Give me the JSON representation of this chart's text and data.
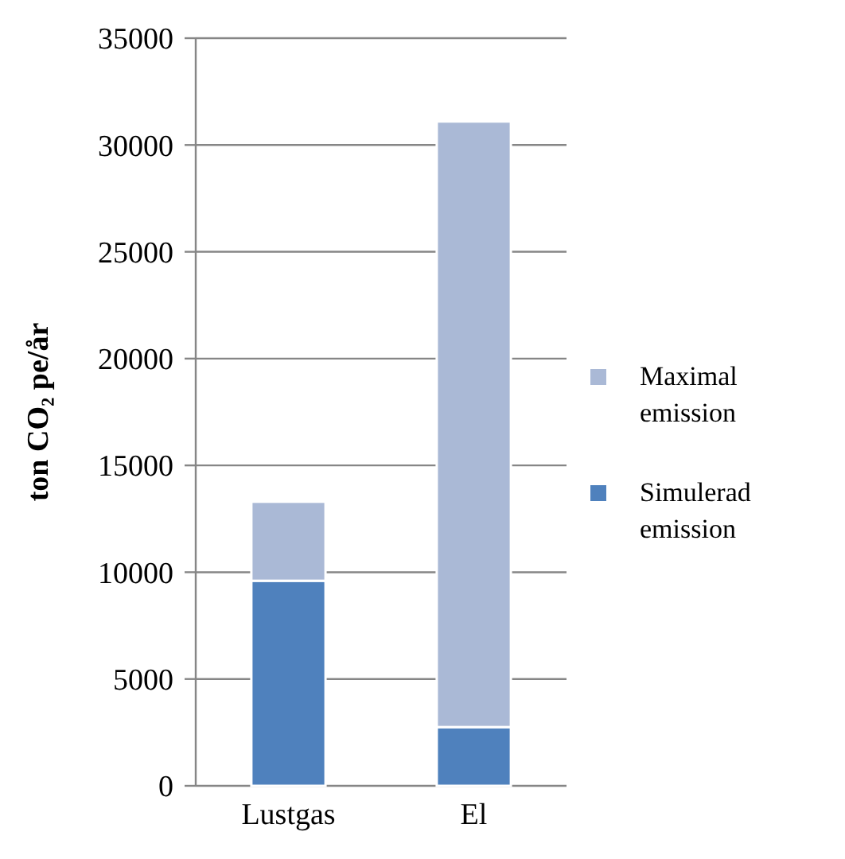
{
  "chart_data": {
    "type": "bar",
    "stacked": true,
    "ylabel": "ton CO₂ pe/år",
    "categories": [
      "Lustgas",
      "El"
    ],
    "series": [
      {
        "name": "Simulerad emission",
        "color": "#4f81bd",
        "values": [
          9600,
          2750
        ]
      },
      {
        "name": "Maximal emission",
        "color": "#aab9d6",
        "values": [
          3700,
          28350
        ]
      }
    ],
    "ylim": [
      0,
      35000
    ],
    "yticks": [
      0,
      5000,
      10000,
      15000,
      20000,
      25000,
      30000,
      35000
    ],
    "grid": "y",
    "legend": "right"
  }
}
